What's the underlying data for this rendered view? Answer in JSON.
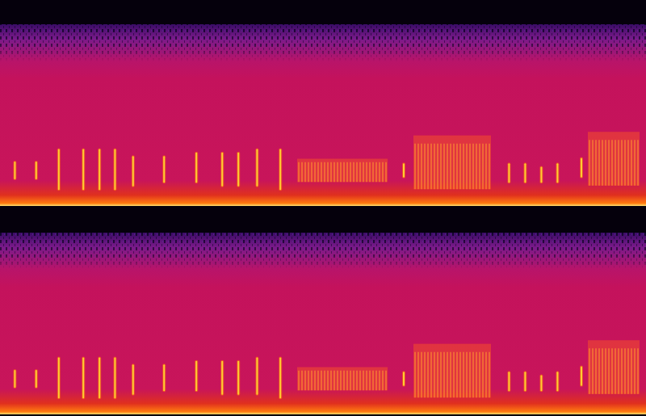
{
  "chart_data": [
    {
      "type": "spectrogram",
      "tick_labels": false,
      "xlim": [
        0,
        100
      ],
      "ylim": [
        0,
        100
      ],
      "color": "#ffcc33",
      "calls": {
        "x": [
          2.3,
          5.6,
          9.1,
          12.9,
          15.4,
          17.8,
          20.6,
          25.4,
          30.4,
          34.4,
          36.9,
          39.8,
          43.4,
          62.5,
          78.8,
          81.3,
          83.8,
          86.3,
          90.0
        ],
        "low": [
          14,
          14,
          8,
          8,
          8,
          8,
          10,
          12,
          12,
          10,
          10,
          10,
          8,
          15,
          12,
          12,
          12,
          12,
          15
        ],
        "high": [
          23,
          23,
          30,
          30,
          30,
          30,
          26,
          26,
          28,
          28,
          28,
          30,
          30,
          22,
          22,
          22,
          20,
          22,
          25
        ]
      },
      "bands": {
        "start": [
          46,
          64,
          91
        ],
        "end": [
          60,
          76,
          99
        ],
        "low": [
          12,
          8,
          10
        ],
        "high": [
          25,
          38,
          40
        ]
      }
    },
    {
      "type": "spectrogram",
      "tick_labels": false,
      "xlim": [
        0,
        100
      ],
      "ylim": [
        0,
        100
      ],
      "color": "#ffcc33",
      "calls": {
        "x": [
          2.3,
          5.6,
          9.1,
          12.9,
          15.4,
          17.8,
          20.6,
          25.4,
          30.4,
          34.4,
          36.9,
          39.8,
          43.4,
          62.5,
          78.8,
          81.3,
          83.8,
          86.3,
          90.0
        ],
        "low": [
          14,
          14,
          8,
          8,
          8,
          8,
          10,
          12,
          12,
          10,
          10,
          10,
          8,
          15,
          12,
          12,
          12,
          12,
          15
        ],
        "high": [
          23,
          23,
          30,
          30,
          30,
          30,
          26,
          26,
          28,
          28,
          28,
          30,
          30,
          22,
          22,
          22,
          20,
          22,
          25
        ]
      },
      "bands": {
        "start": [
          46,
          64,
          91
        ],
        "end": [
          60,
          76,
          99
        ],
        "low": [
          12,
          8,
          10
        ],
        "high": [
          25,
          38,
          40
        ]
      }
    }
  ]
}
